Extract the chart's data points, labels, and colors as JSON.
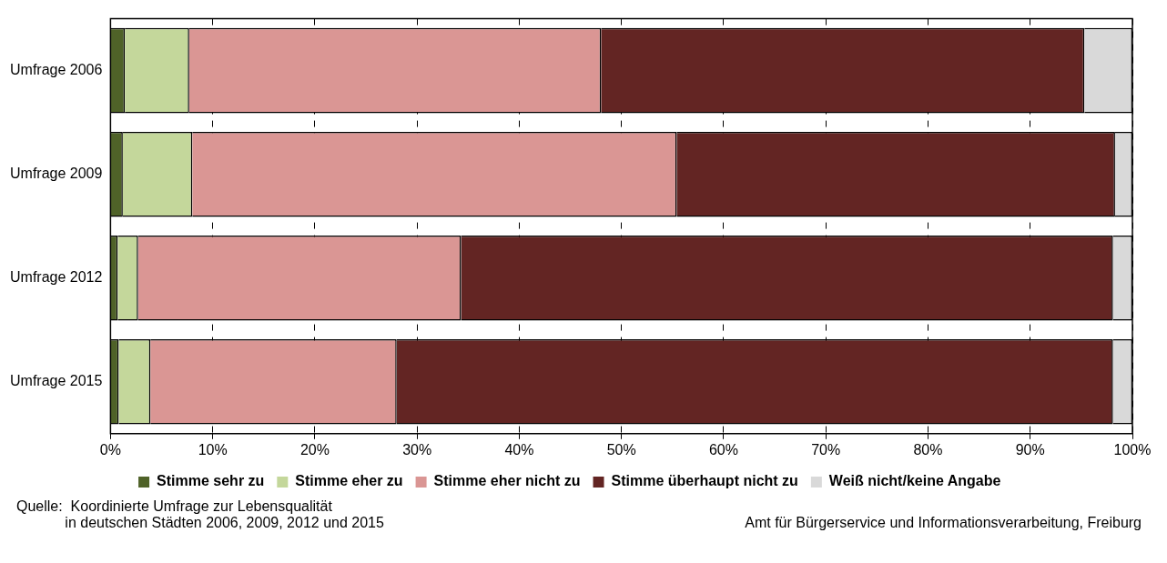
{
  "chart_data": {
    "type": "bar",
    "orientation": "horizontal",
    "stacked": true,
    "categories": [
      "Umfrage 2006",
      "Umfrage 2009",
      "Umfrage 2012",
      "Umfrage 2015"
    ],
    "series": [
      {
        "name": "Stimme sehr zu",
        "color": "#4f6228",
        "values": [
          1.4,
          1.2,
          0.7,
          0.8
        ]
      },
      {
        "name": "Stimme eher zu",
        "color": "#c4d79b",
        "values": [
          6.3,
          6.8,
          2.0,
          3.1
        ]
      },
      {
        "name": "Stimme eher nicht zu",
        "color": "#da9694",
        "values": [
          40.3,
          47.4,
          31.6,
          24.1
        ]
      },
      {
        "name": "Stimme überhaupt nicht zu",
        "color": "#632523",
        "values": [
          47.3,
          42.9,
          63.8,
          70.1
        ]
      },
      {
        "name": "Weiß nicht/keine Angabe",
        "color": "#d9d9d9",
        "values": [
          4.7,
          1.7,
          1.9,
          1.9
        ]
      }
    ],
    "xlim": [
      0,
      100
    ],
    "xticks": [
      {
        "value": 0,
        "label": "0%"
      },
      {
        "value": 10,
        "label": "10%"
      },
      {
        "value": 20,
        "label": "20%"
      },
      {
        "value": 30,
        "label": "30%"
      },
      {
        "value": 40,
        "label": "40%"
      },
      {
        "value": 50,
        "label": "50%"
      },
      {
        "value": 60,
        "label": "60%"
      },
      {
        "value": 70,
        "label": "70%"
      },
      {
        "value": 80,
        "label": "80%"
      },
      {
        "value": 90,
        "label": "90%"
      },
      {
        "value": 100,
        "label": "100%"
      }
    ],
    "grid": "x",
    "legend": "bottom",
    "annotations": [
      "Quelle:  Koordinierte Umfrage zur Lebensqualität\n            in deutschen Städten 2006, 2009, 2012 und 2015",
      "Amt für Bürgerservice und Informationsverarbeitung, Freiburg"
    ]
  }
}
